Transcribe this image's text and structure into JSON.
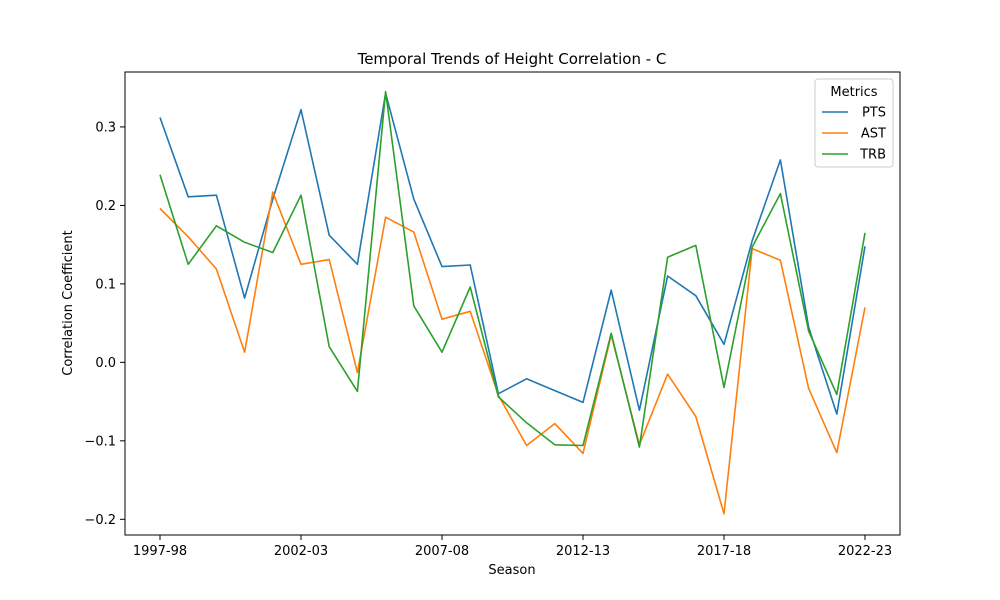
{
  "chart_data": {
    "type": "line",
    "title": "Temporal Trends of Height Correlation - C",
    "xlabel": "Season",
    "ylabel": "Correlation Coefficient",
    "x": [
      "1997-98",
      "1998-99",
      "1999-00",
      "2000-01",
      "2001-02",
      "2002-03",
      "2003-04",
      "2004-05",
      "2005-06",
      "2006-07",
      "2007-08",
      "2008-09",
      "2009-10",
      "2010-11",
      "2011-12",
      "2012-13",
      "2013-14",
      "2014-15",
      "2015-16",
      "2016-17",
      "2017-18",
      "2018-19",
      "2019-20",
      "2020-21",
      "2021-22",
      "2022-23"
    ],
    "xticks": [
      "1997-98",
      "2002-03",
      "2007-08",
      "2012-13",
      "2017-18",
      "2022-23"
    ],
    "ylim": [
      -0.22,
      0.37
    ],
    "yticks": [
      -0.2,
      -0.1,
      0.0,
      0.1,
      0.2,
      0.3
    ],
    "yticklabels": [
      "−0.2",
      "−0.1",
      "0.0",
      "0.1",
      "0.2",
      "0.3"
    ],
    "legend_title": "Metrics",
    "legend_position": "top-right",
    "grid": false,
    "series": [
      {
        "name": "PTS",
        "color": "#1f77b4",
        "values": [
          0.312,
          0.211,
          0.213,
          0.082,
          0.208,
          0.322,
          0.162,
          0.125,
          0.343,
          0.208,
          0.122,
          0.124,
          -0.04,
          -0.021,
          -0.036,
          -0.051,
          0.092,
          -0.061,
          0.11,
          0.085,
          0.023,
          0.155,
          0.258,
          0.045,
          -0.066,
          0.148
        ]
      },
      {
        "name": "AST",
        "color": "#ff7f0e",
        "values": [
          0.196,
          0.16,
          0.119,
          0.013,
          0.217,
          0.125,
          0.131,
          -0.013,
          0.185,
          0.166,
          0.055,
          0.065,
          -0.042,
          -0.106,
          -0.078,
          -0.116,
          0.035,
          -0.105,
          -0.015,
          -0.069,
          -0.193,
          0.145,
          0.13,
          -0.033,
          -0.115,
          0.07
        ]
      },
      {
        "name": "TRB",
        "color": "#2ca02c",
        "values": [
          0.239,
          0.125,
          0.174,
          0.153,
          0.14,
          0.213,
          0.02,
          -0.037,
          0.345,
          0.072,
          0.013,
          0.096,
          -0.044,
          -0.077,
          -0.105,
          -0.106,
          0.037,
          -0.108,
          0.134,
          0.149,
          -0.032,
          0.147,
          0.215,
          0.04,
          -0.041,
          0.165
        ]
      }
    ]
  }
}
